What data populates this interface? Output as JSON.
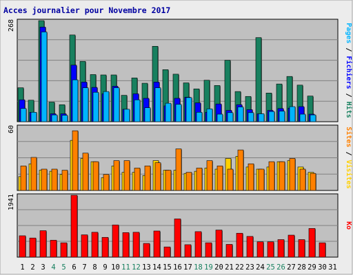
{
  "title": "Acces journalier pour Novembre 2017",
  "colors": {
    "background": "#ececec",
    "plot_bg": "#c0c0c0",
    "grid": "#808080",
    "title": "#0000a0",
    "hits": "#18805f",
    "files": "#0000ff",
    "pages": "#00b4ff",
    "visits": "#ffd000",
    "sites": "#ff8000",
    "kb": "#ff0000",
    "weekend_label": "#18805f",
    "weekday_label": "#000000"
  },
  "chart_data": [
    {
      "type": "bar",
      "panel": "hits-files-pages",
      "ymax_label": "268",
      "side_labels": [
        {
          "text": "Pages",
          "color": "#00b4ff"
        },
        {
          "text": " / ",
          "color": "#000000"
        },
        {
          "text": "Fichiers",
          "color": "#0000ff"
        },
        {
          "text": " / ",
          "color": "#000000"
        },
        {
          "text": "Hits",
          "color": "#18805f"
        }
      ],
      "ylim": [
        0,
        268
      ],
      "categories": [
        "1",
        "2",
        "3",
        "4",
        "5",
        "6",
        "7",
        "8",
        "9",
        "10",
        "11",
        "12",
        "13",
        "14",
        "15",
        "16",
        "17",
        "18",
        "19",
        "20",
        "21",
        "22",
        "23",
        "24",
        "25",
        "26",
        "27",
        "28",
        "29",
        "30",
        "31"
      ],
      "series": [
        {
          "values": [
            90,
            57,
            268,
            52,
            45,
            230,
            160,
            125,
            124,
            124,
            70,
            116,
            102,
            200,
            138,
            126,
            103,
            87,
            110,
            96,
            163,
            80,
            67,
            223,
            76,
            100,
            120,
            97,
            68,
            0,
            0
          ]
        },
        {
          "values": [
            58,
            25,
            251,
            21,
            21,
            150,
            105,
            91,
            74,
            94,
            33,
            74,
            62,
            105,
            42,
            62,
            65,
            50,
            25,
            47,
            30,
            45,
            32,
            21,
            30,
            35,
            36,
            40,
            20,
            0,
            0
          ]
        },
        {
          "values": [
            35,
            25,
            238,
            18,
            17,
            111,
            90,
            78,
            80,
            90,
            33,
            58,
            37,
            90,
            49,
            46,
            64,
            25,
            34,
            20,
            24,
            39,
            24,
            21,
            27,
            28,
            40,
            20,
            18,
            0,
            0
          ]
        }
      ]
    },
    {
      "type": "bar",
      "panel": "visits-sites",
      "ymax_label": "60",
      "side_labels": [
        {
          "text": "Sites",
          "color": "#ff8000"
        },
        {
          "text": " / ",
          "color": "#000000"
        },
        {
          "text": "Visites",
          "color": "#ffd000"
        }
      ],
      "ylim": [
        0,
        60
      ],
      "categories": [
        "1",
        "2",
        "3",
        "4",
        "5",
        "6",
        "7",
        "8",
        "9",
        "10",
        "11",
        "12",
        "13",
        "14",
        "15",
        "16",
        "17",
        "18",
        "19",
        "20",
        "21",
        "22",
        "23",
        "24",
        "25",
        "26",
        "27",
        "28",
        "29",
        "30",
        "31"
      ],
      "series": [
        {
          "values": [
            13,
            25,
            19,
            18,
            15,
            47,
            30,
            27,
            12,
            23,
            17,
            17,
            14,
            28,
            19,
            19,
            16,
            18,
            21,
            20,
            30,
            32,
            22,
            20,
            22,
            27,
            28,
            22,
            17,
            0,
            0
          ]
        },
        {
          "values": [
            23,
            31,
            20,
            20,
            19,
            56,
            35,
            27,
            15,
            28,
            28,
            21,
            23,
            26,
            19,
            39,
            17,
            21,
            28,
            23,
            20,
            38,
            25,
            20,
            27,
            27,
            30,
            20,
            16,
            0,
            0
          ]
        }
      ]
    },
    {
      "type": "bar",
      "panel": "kb",
      "ymax_label": "1941",
      "side_labels": [
        {
          "text": "Ko",
          "color": "#ff0000"
        }
      ],
      "ylim": [
        0,
        1941
      ],
      "categories": [
        "1",
        "2",
        "3",
        "4",
        "5",
        "6",
        "7",
        "8",
        "9",
        "10",
        "11",
        "12",
        "13",
        "14",
        "15",
        "16",
        "17",
        "18",
        "19",
        "20",
        "21",
        "22",
        "23",
        "24",
        "25",
        "26",
        "27",
        "28",
        "29",
        "30",
        "31"
      ],
      "series": [
        {
          "values": [
            670,
            600,
            830,
            530,
            450,
            1941,
            700,
            780,
            620,
            1010,
            770,
            780,
            430,
            820,
            320,
            1200,
            390,
            800,
            450,
            850,
            400,
            750,
            650,
            480,
            480,
            550,
            690,
            550,
            900,
            450,
            0
          ]
        }
      ]
    }
  ],
  "x_axis": {
    "labels": [
      "1",
      "2",
      "3",
      "4",
      "5",
      "6",
      "7",
      "8",
      "9",
      "10",
      "11",
      "12",
      "13",
      "14",
      "15",
      "16",
      "17",
      "18",
      "19",
      "20",
      "21",
      "22",
      "23",
      "24",
      "25",
      "26",
      "27",
      "28",
      "29",
      "30",
      "31"
    ],
    "weekend_days": [
      "4",
      "5",
      "11",
      "12",
      "18",
      "19",
      "25",
      "26"
    ]
  }
}
